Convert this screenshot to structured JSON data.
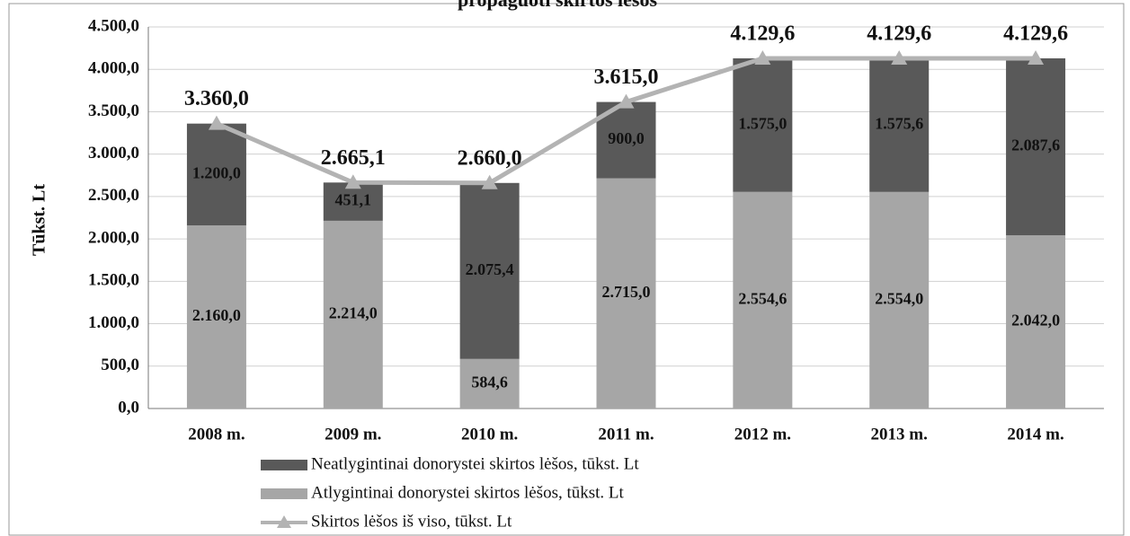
{
  "chart_data": {
    "type": "bar",
    "title": "propaguoti skirtos lėšos",
    "y_label": "Tūkst. Lt",
    "categories": [
      "2008 m.",
      "2009 m.",
      "2010 m.",
      "2011 m.",
      "2012 m.",
      "2013 m.",
      "2014 m."
    ],
    "series": [
      {
        "name": "Neatlygintinai donorystei skirtos lėšos, tūkst. Lt",
        "type": "bar",
        "color": "#595959",
        "values": [
          1200.0,
          451.1,
          2075.4,
          900.0,
          1575.0,
          1575.6,
          2087.6
        ],
        "value_labels": [
          "1.200,0",
          "451,1",
          "2.075,4",
          "900,0",
          "1.575,0",
          "1.575,6",
          "2.087,6"
        ]
      },
      {
        "name": "Atlygintinai donorystei skirtos lėšos, tūkst. Lt",
        "type": "bar",
        "color": "#a6a6a6",
        "values": [
          2160.0,
          2214.0,
          584.6,
          2715.0,
          2554.6,
          2554.0,
          2042.0
        ],
        "value_labels": [
          "2.160,0",
          "2.214,0",
          "584,6",
          "2.715,0",
          "2.554,6",
          "2.554,0",
          "2.042,0"
        ]
      },
      {
        "name": "Skirtos lėšos iš viso, tūkst. Lt",
        "type": "line",
        "color": "#b3b3b3",
        "values": [
          3360.0,
          2665.1,
          2660.0,
          3615.0,
          4129.6,
          4129.6,
          4129.6
        ],
        "value_labels": [
          "3.360,0",
          "2.665,1",
          "2.660,0",
          "3.615,0",
          "4.129,6",
          "4.129,6",
          "4.129,6"
        ]
      }
    ],
    "ylim": [
      0,
      4500
    ],
    "yticks": [
      {
        "value": 0,
        "label": "0,0"
      },
      {
        "value": 500,
        "label": "500,0"
      },
      {
        "value": 1000,
        "label": "1.000,0"
      },
      {
        "value": 1500,
        "label": "1.500,0"
      },
      {
        "value": 2000,
        "label": "2.000,0"
      },
      {
        "value": 2500,
        "label": "2.500,0"
      },
      {
        "value": 3000,
        "label": "3.000,0"
      },
      {
        "value": 3500,
        "label": "3.500,0"
      },
      {
        "value": 4000,
        "label": "4.000,0"
      },
      {
        "value": 4500,
        "label": "4.500,0"
      }
    ],
    "grid": true,
    "legend": "bottom"
  }
}
